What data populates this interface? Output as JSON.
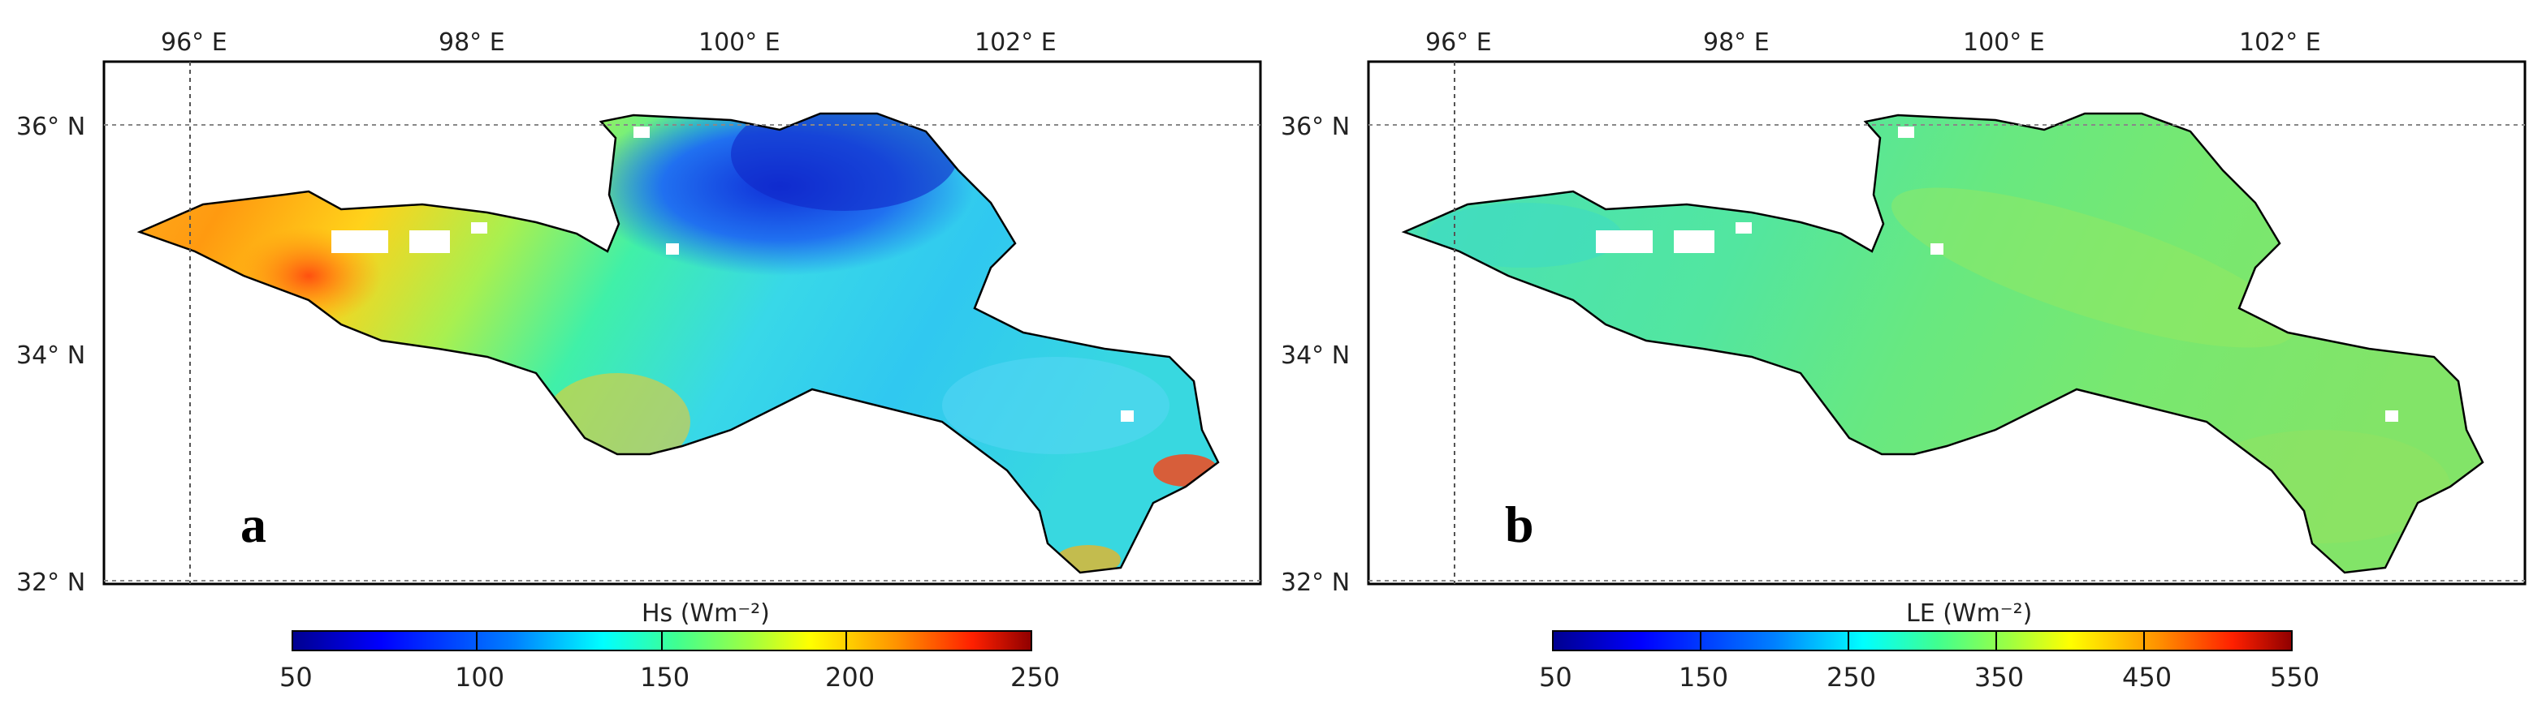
{
  "panels": [
    {
      "letter": "a",
      "lon_labels": [
        "96° E",
        "98° E",
        "100° E",
        "102° E"
      ],
      "lat_labels": [
        "36° N",
        "34° N",
        "32° N"
      ],
      "colorbar": {
        "title": "Hs (Wm⁻²)",
        "ticks": [
          "50",
          "100",
          "150",
          "200",
          "250"
        ]
      }
    },
    {
      "letter": "b",
      "lon_labels": [
        "96° E",
        "98° E",
        "100° E",
        "102° E"
      ],
      "lat_labels": [
        "36° N",
        "34° N",
        "32° N"
      ],
      "colorbar": {
        "title": "LE (Wm⁻²)",
        "ticks": [
          "50",
          "150",
          "250",
          "350",
          "450",
          "550"
        ]
      }
    }
  ],
  "colors": {
    "colormap": [
      "#00008f",
      "#0000ff",
      "#0080ff",
      "#00ffff",
      "#40ff80",
      "#80ff40",
      "#ffff00",
      "#ff8000",
      "#ff0000",
      "#800000"
    ],
    "region_a_low": "#1a4fe0",
    "region_a_mid": "#32e6c8",
    "region_a_high": "#ff9a1a",
    "region_b_fill": "#5ee896"
  }
}
